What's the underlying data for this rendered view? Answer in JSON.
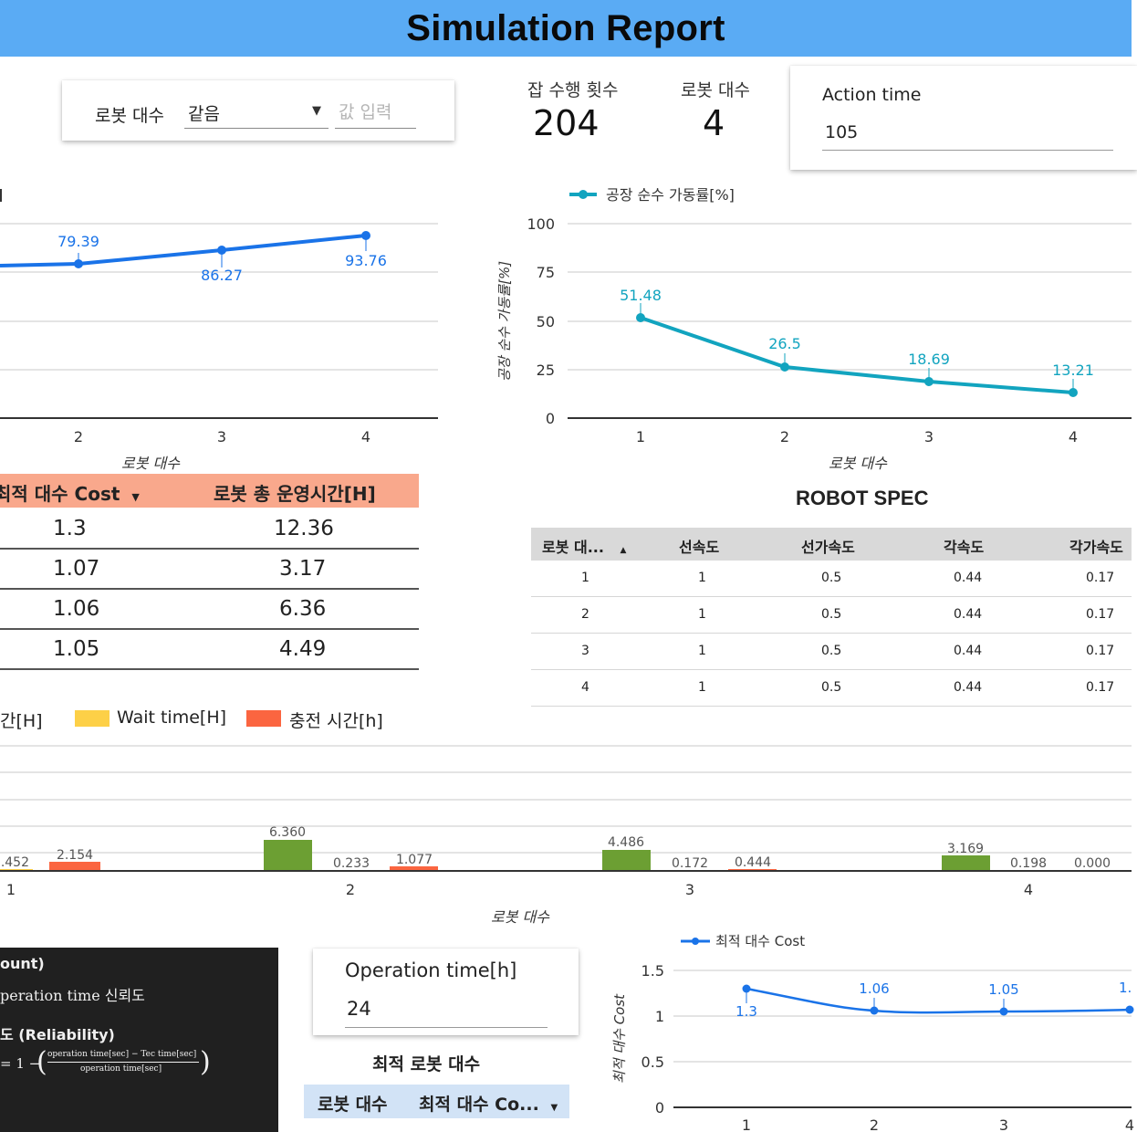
{
  "header": {
    "title": "Simulation Report"
  },
  "filter": {
    "label": "로봇 대수",
    "operator": "같음",
    "value_placeholder": "값 입력"
  },
  "scorecards": [
    {
      "label": "잡 수행 횟수",
      "value": "204"
    },
    {
      "label": "로봇 대수",
      "value": "4"
    }
  ],
  "action_time": {
    "label": "Action time",
    "value": "105"
  },
  "chart_top_left": {
    "xlabel": "로봇 대수",
    "point_labels": [
      "79.39",
      "86.27",
      "93.76"
    ],
    "tick_labels": [
      "2",
      "3",
      "4"
    ]
  },
  "chart_top_right": {
    "legend": "공장 순수 가동률[%]",
    "ylabel": "공장 순수 가동률[%]",
    "xlabel": "로봇 대수",
    "y_ticks": [
      "100",
      "75",
      "50",
      "25",
      "0"
    ],
    "x_ticks": [
      "1",
      "2",
      "3",
      "4"
    ],
    "point_labels": [
      "51.48",
      "26.5",
      "18.69",
      "13.21"
    ]
  },
  "cost_table": {
    "headers": [
      "최적 대수 Cost",
      "로봇 총 운영시간[H]"
    ],
    "rows": [
      [
        "1.3",
        "12.36"
      ],
      [
        "1.07",
        "3.17"
      ],
      [
        "1.06",
        "6.36"
      ],
      [
        "1.05",
        "4.49"
      ]
    ]
  },
  "robot_spec": {
    "title": "ROBOT SPEC",
    "headers": [
      "로봇 대...",
      "선속도",
      "선가속도",
      "각속도",
      "각가속도"
    ],
    "rows": [
      [
        "1",
        "1",
        "0.5",
        "0.44",
        "0.17"
      ],
      [
        "2",
        "1",
        "0.5",
        "0.44",
        "0.17"
      ],
      [
        "3",
        "1",
        "0.5",
        "0.44",
        "0.17"
      ],
      [
        "4",
        "1",
        "0.5",
        "0.44",
        "0.17"
      ]
    ]
  },
  "bar_legend": {
    "item1": "간[H]",
    "item2": "Wait time[H]",
    "item3": "충전 시간[h]"
  },
  "bar_chart": {
    "xlabel": "로봇 대수",
    "x_ticks": [
      "1",
      "2",
      "3",
      "4"
    ],
    "labels_row1": ".452",
    "labels_row1b": "2.154",
    "labels": [
      [
        "6.360",
        "0.233",
        "1.077"
      ],
      [
        "4.486",
        "0.172",
        "0.444"
      ],
      [
        "3.169",
        "0.198",
        "0.000"
      ]
    ]
  },
  "info_panel": {
    "line1": "ount)",
    "line2": "peration time 신뢰도",
    "line3": "도 (Reliability)",
    "formula_prefix": "= 1 −",
    "formula_num": "operation time[sec] − Tec time[sec]",
    "formula_den": "operation time[sec]"
  },
  "operation_time": {
    "label": "Operation time[h]",
    "value": "24"
  },
  "optimal_robots": {
    "title": "최적 로봇 대수",
    "headers": [
      "로봇 대수",
      "최적 대수 Co..."
    ]
  },
  "cost_chart": {
    "legend": "최적 대수 Cost",
    "ylabel": "최적 대수 Cost",
    "y_ticks": [
      "1.5",
      "1",
      "0.5",
      "0"
    ],
    "x_ticks": [
      "1",
      "2",
      "3",
      "4"
    ],
    "point_labels": [
      "1.3",
      "1.06",
      "1.05",
      "1."
    ]
  },
  "chart_data": [
    {
      "type": "line",
      "title": "",
      "xlabel": "로봇 대수",
      "x": [
        2,
        3,
        4
      ],
      "series": [
        {
          "values": [
            79.39,
            86.27,
            93.76
          ]
        }
      ]
    },
    {
      "type": "line",
      "title": "",
      "xlabel": "로봇 대수",
      "ylabel": "공장 순수 가동률[%]",
      "x": [
        1,
        2,
        3,
        4
      ],
      "ylim": [
        0,
        100
      ],
      "series": [
        {
          "name": "공장 순수 가동률[%]",
          "values": [
            51.48,
            26.5,
            18.69,
            13.21
          ]
        }
      ]
    },
    {
      "type": "bar",
      "xlabel": "로봇 대수",
      "categories": [
        "1",
        "2",
        "3",
        "4"
      ],
      "series": [
        {
          "name": "Wait time[H]",
          "values": [
            0.452,
            0.233,
            0.172,
            0.198
          ]
        },
        {
          "name": "충전 시간[h]",
          "values": [
            2.154,
            1.077,
            0.444,
            0.0
          ]
        },
        {
          "values": [
            null,
            6.36,
            4.486,
            3.169
          ]
        }
      ]
    },
    {
      "type": "line",
      "ylabel": "최적 대수 Cost",
      "x": [
        1,
        2,
        3,
        4
      ],
      "ylim": [
        0,
        1.5
      ],
      "series": [
        {
          "name": "최적 대수 Cost",
          "values": [
            1.3,
            1.06,
            1.05,
            1.07
          ]
        }
      ]
    }
  ],
  "colors": {
    "header": "#5aabf4",
    "line_blue": "#1a73e8",
    "line_teal": "#12a4bf",
    "table_header": "#f9a88c",
    "spec_header": "#d9d9d9",
    "bar_green": "#6c9f33",
    "bar_yellow": "#fdd047",
    "bar_orange": "#fb6540",
    "opt_header": "#d2e3f6"
  }
}
